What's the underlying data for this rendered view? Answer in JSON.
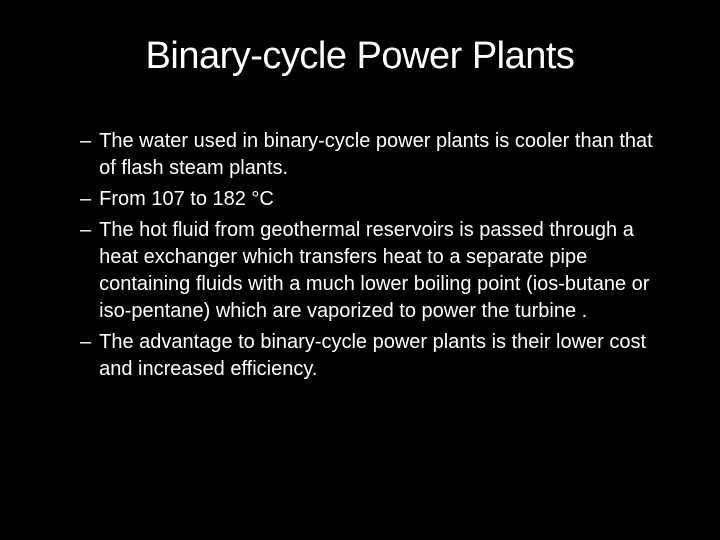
{
  "slide": {
    "title": "Binary-cycle Power Plants",
    "bullets": [
      "The water used in binary-cycle power plants is cooler than that of flash steam plants.",
      "From 107 to 182 °C",
      "The hot fluid from geothermal reservoirs is passed through a heat exchanger which transfers heat to a separate pipe containing fluids with a much lower boiling point (ios-butane or iso-pentane) which are vaporized to power the turbine .",
      "The advantage to binary-cycle power plants is their lower cost and increased efficiency."
    ],
    "bullet_dash": "–"
  },
  "styling": {
    "background_color": "#000000",
    "text_color": "#ffffff",
    "title_fontsize": 38,
    "body_fontsize": 20,
    "font_family": "Verdana, Geneva, sans-serif"
  }
}
